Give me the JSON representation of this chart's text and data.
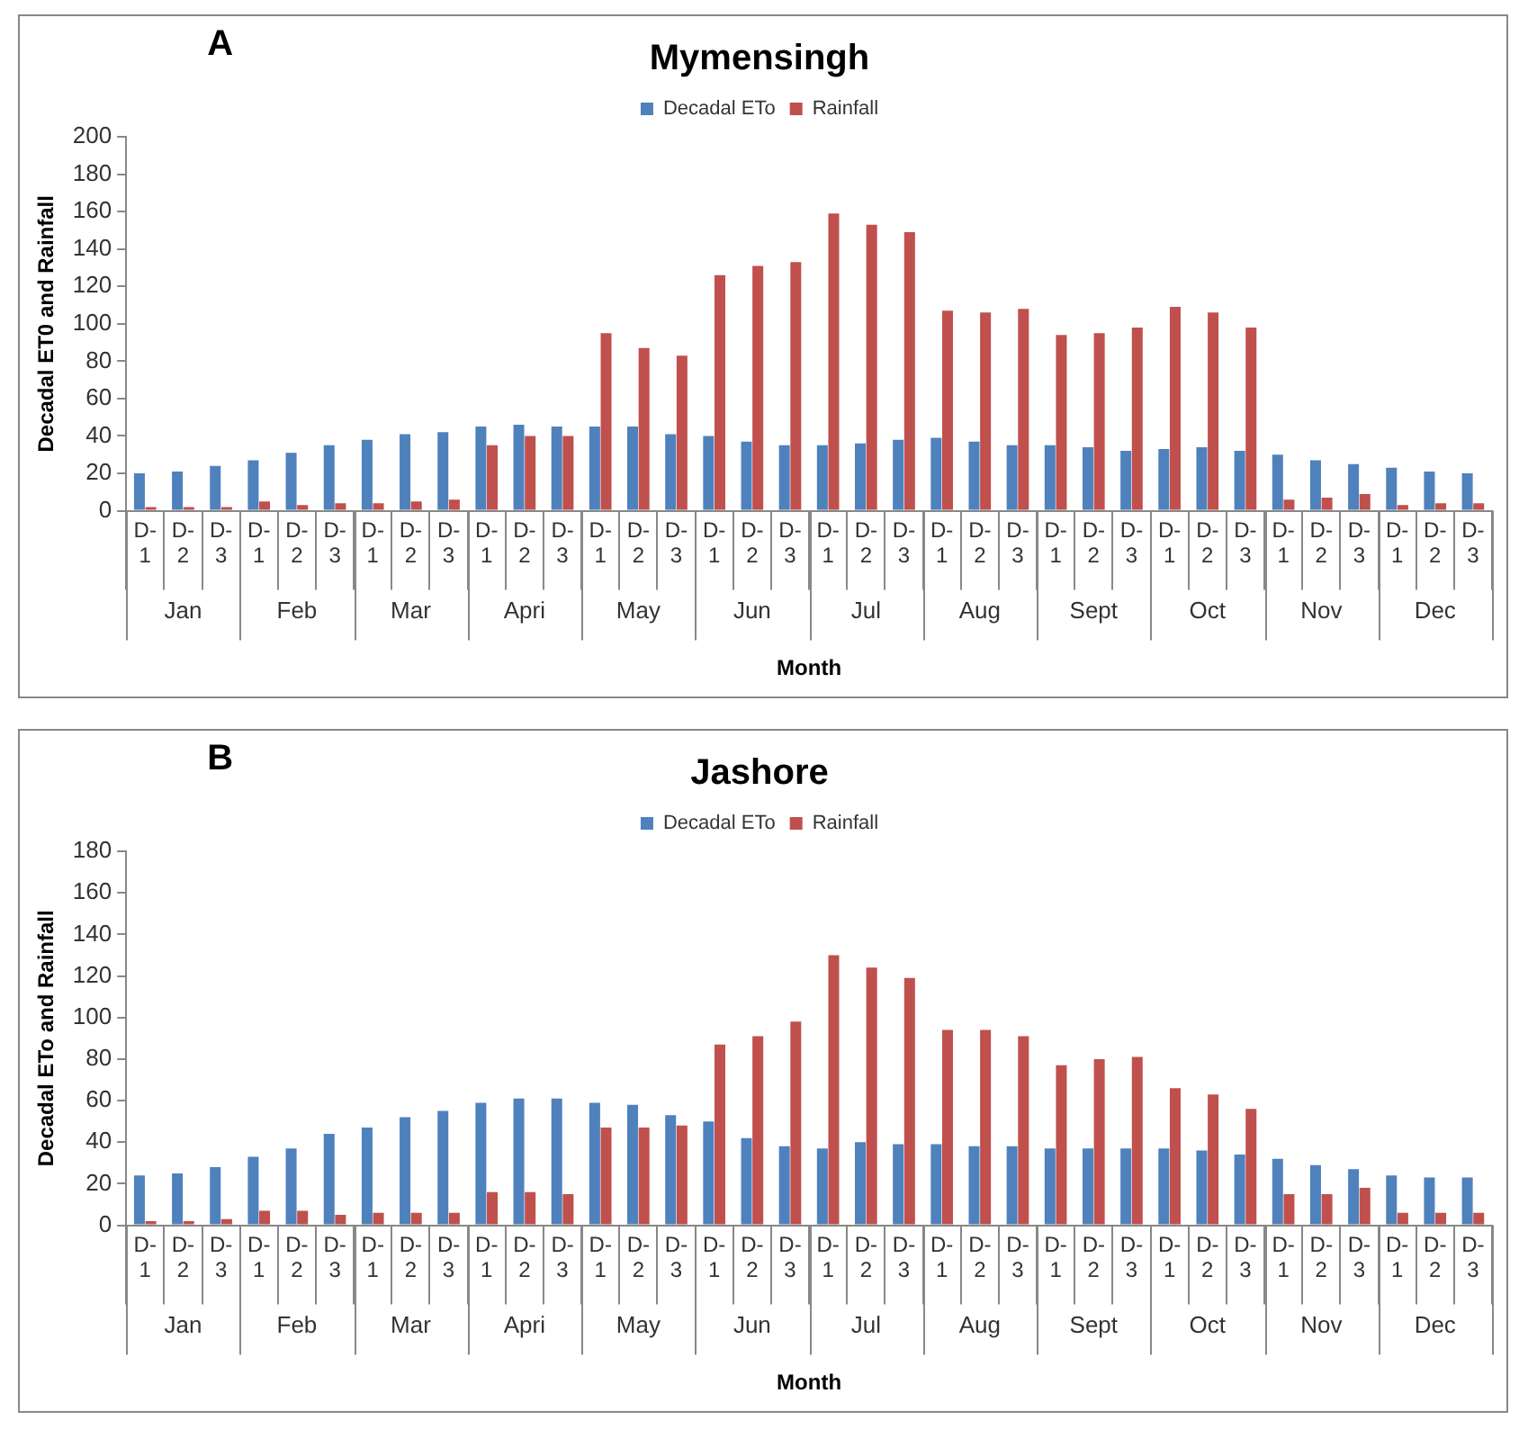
{
  "chart_data": [
    {
      "type": "bar",
      "title": "Mymensingh",
      "xlabel": "Month",
      "ylabel": "Decadal ET0 and Rainfall",
      "annotations": [
        "A",
        "Jan",
        "Feb",
        "Mar",
        "Apri",
        "May",
        "Jun",
        "Jul",
        "Aug",
        "Sept",
        "Oct",
        "Nov",
        "Dec"
      ],
      "categories": [
        "D-1",
        "D-2",
        "D-3",
        "D-1",
        "D-2",
        "D-3",
        "D-1",
        "D-2",
        "D-3",
        "D-1",
        "D-2",
        "D-3",
        "D-1",
        "D-2",
        "D-3",
        "D-1",
        "D-2",
        "D-3",
        "D-1",
        "D-2",
        "D-3",
        "D-1",
        "D-2",
        "D-3",
        "D-1",
        "D-2",
        "D-3",
        "D-1",
        "D-2",
        "D-3",
        "D-1",
        "D-2",
        "D-3",
        "D-1",
        "D-2",
        "D-3"
      ],
      "series": [
        {
          "name": "Decadal ETo",
          "color": "#4f81bd",
          "values": [
            20,
            21,
            24,
            27,
            31,
            35,
            38,
            41,
            42,
            45,
            46,
            45,
            45,
            45,
            41,
            40,
            37,
            35,
            35,
            36,
            38,
            39,
            37,
            35,
            35,
            34,
            32,
            33,
            34,
            32,
            30,
            27,
            25,
            23,
            21,
            20
          ]
        },
        {
          "name": "Rainfall",
          "color": "#c0504d",
          "values": [
            2,
            2,
            2,
            5,
            3,
            4,
            4,
            5,
            6,
            35,
            40,
            40,
            95,
            87,
            83,
            126,
            131,
            133,
            159,
            153,
            149,
            107,
            106,
            108,
            94,
            95,
            98,
            109,
            106,
            98,
            6,
            7,
            9,
            3,
            4,
            4
          ]
        }
      ],
      "ylim": [
        0,
        200
      ],
      "yticks": [
        0,
        20,
        40,
        60,
        80,
        100,
        120,
        140,
        160,
        180,
        200
      ],
      "grid": false,
      "legend": "top"
    },
    {
      "type": "bar",
      "title": "Jashore",
      "xlabel": "Month",
      "ylabel": "Decadal ETo and Rainfall",
      "annotations": [
        "B",
        "Jan",
        "Feb",
        "Mar",
        "Apri",
        "May",
        "Jun",
        "Jul",
        "Aug",
        "Sept",
        "Oct",
        "Nov",
        "Dec"
      ],
      "categories": [
        "D-1",
        "D-2",
        "D-3",
        "D-1",
        "D-2",
        "D-3",
        "D-1",
        "D-2",
        "D-3",
        "D-1",
        "D-2",
        "D-3",
        "D-1",
        "D-2",
        "D-3",
        "D-1",
        "D-2",
        "D-3",
        "D-1",
        "D-2",
        "D-3",
        "D-1",
        "D-2",
        "D-3",
        "D-1",
        "D-2",
        "D-3",
        "D-1",
        "D-2",
        "D-3",
        "D-1",
        "D-2",
        "D-3",
        "D-1",
        "D-2",
        "D-3"
      ],
      "series": [
        {
          "name": "Decadal ETo",
          "color": "#4f81bd",
          "values": [
            24,
            25,
            28,
            33,
            37,
            44,
            47,
            52,
            55,
            59,
            61,
            61,
            59,
            58,
            53,
            50,
            42,
            38,
            37,
            40,
            39,
            39,
            38,
            38,
            37,
            37,
            37,
            37,
            36,
            34,
            32,
            29,
            27,
            24,
            23,
            23
          ]
        },
        {
          "name": "Rainfall",
          "color": "#c0504d",
          "values": [
            2,
            2,
            3,
            7,
            7,
            5,
            6,
            6,
            6,
            16,
            16,
            15,
            47,
            47,
            48,
            87,
            91,
            98,
            130,
            124,
            119,
            94,
            94,
            91,
            77,
            80,
            81,
            66,
            63,
            56,
            15,
            15,
            18,
            6,
            6,
            6
          ]
        }
      ],
      "ylim": [
        0,
        180
      ],
      "yticks": [
        0,
        20,
        40,
        60,
        80,
        100,
        120,
        140,
        160,
        180
      ],
      "grid": false,
      "legend": "top"
    }
  ]
}
